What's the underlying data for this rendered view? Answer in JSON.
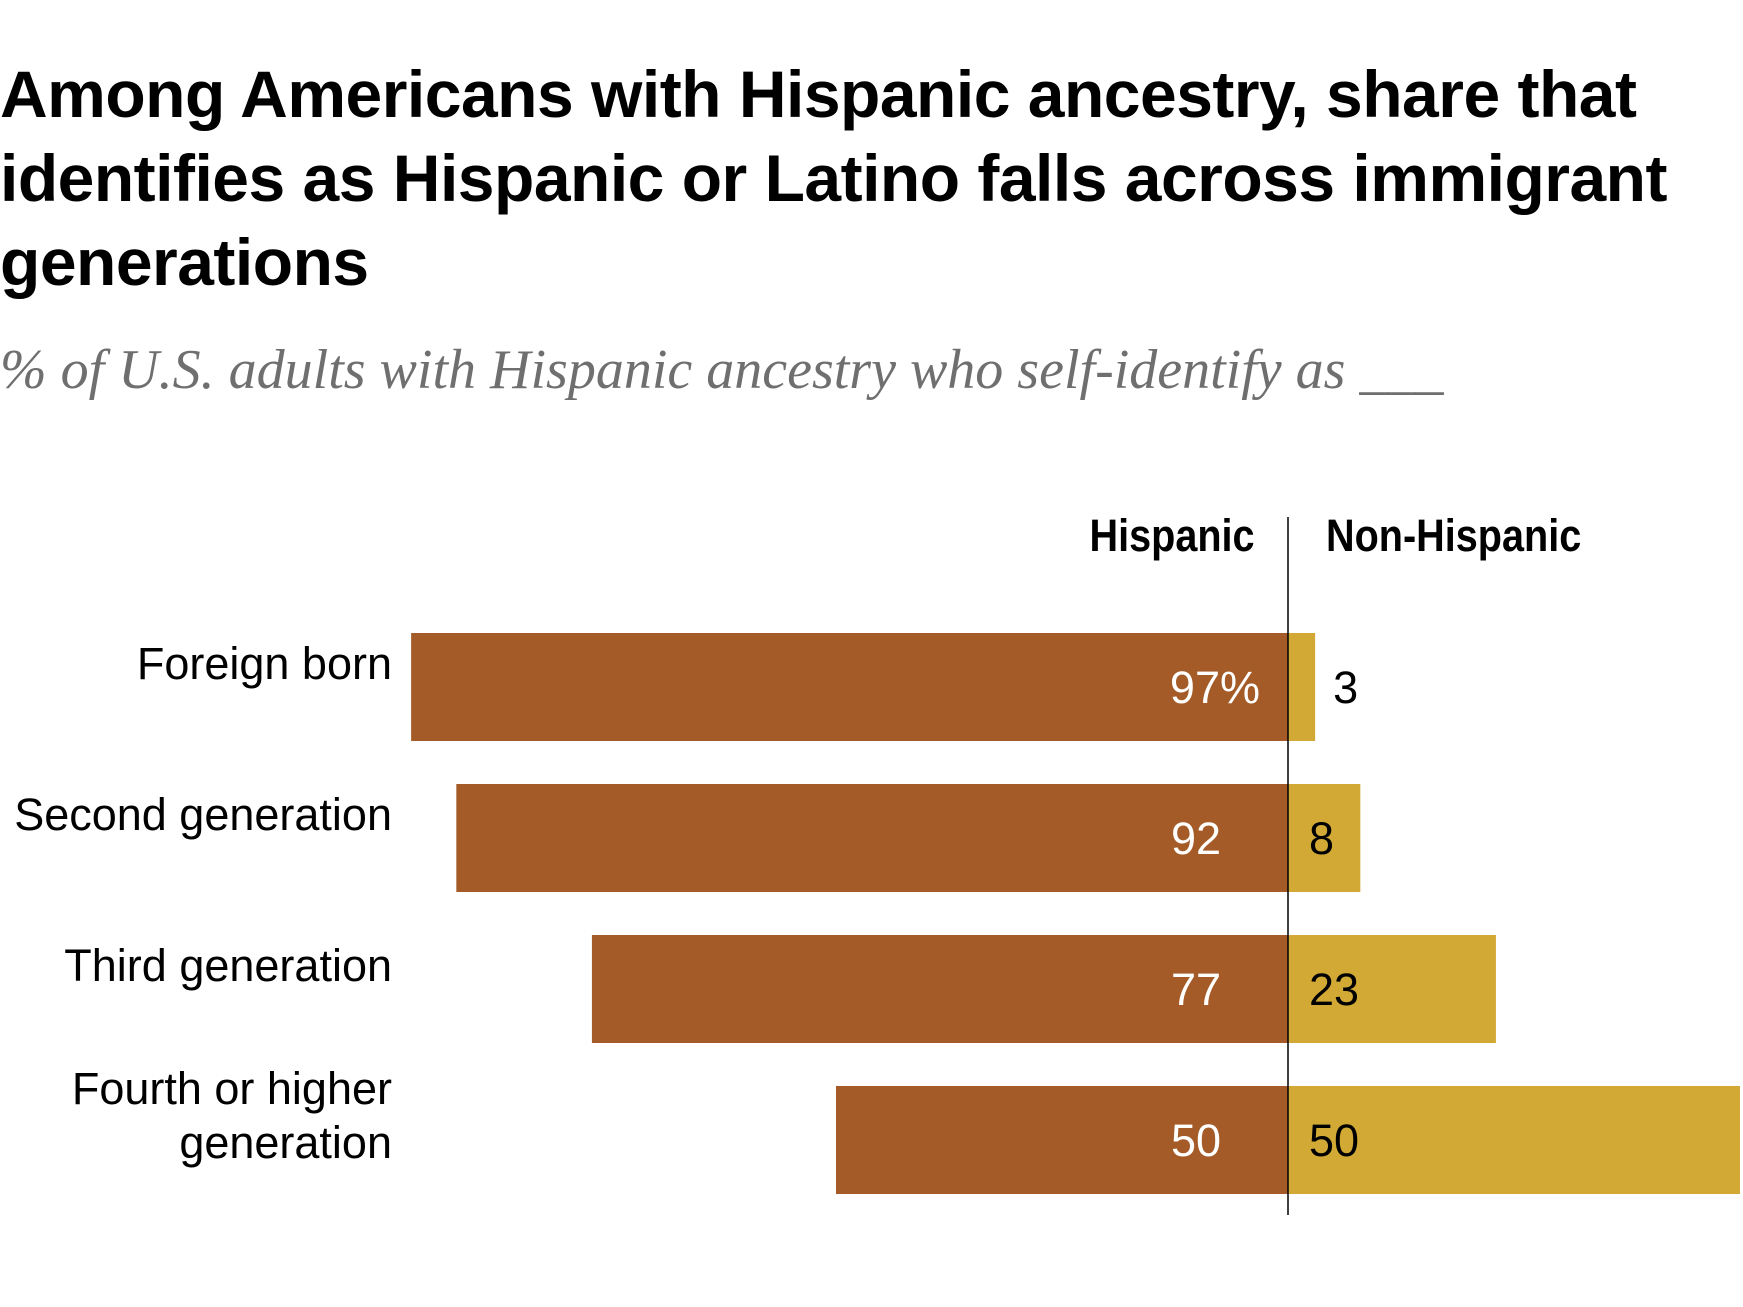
{
  "chart_data": {
    "type": "bar",
    "title": "Among Americans with Hispanic ancestry, share that identifies as Hispanic or Latino falls across immigrant generations",
    "subtitle": "% of U.S. adults with Hispanic ancestry who self-identify as ___",
    "categories": [
      [
        "Foreign born"
      ],
      [
        "Second generation"
      ],
      [
        "Third generation"
      ],
      [
        "Fourth or higher",
        "generation"
      ]
    ],
    "series": [
      {
        "name": "Hispanic",
        "values": [
          97,
          92,
          77,
          50
        ],
        "labels": [
          "97%",
          "92",
          "77",
          "50"
        ],
        "color": "#a45b27"
      },
      {
        "name": "Non-Hispanic",
        "values": [
          3,
          8,
          23,
          50
        ],
        "labels": [
          "3",
          "8",
          "23",
          "50"
        ],
        "color": "#d2a934"
      }
    ],
    "orientation": "horizontal-diverging",
    "xlim": [
      0,
      100
    ],
    "grid": false
  }
}
